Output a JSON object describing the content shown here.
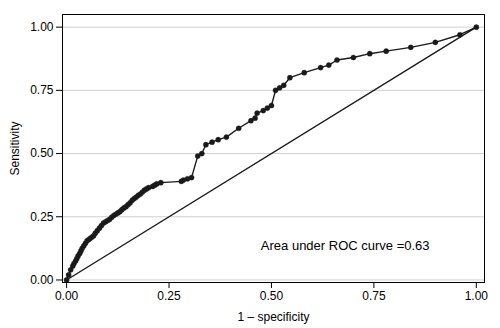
{
  "chart_data": {
    "type": "line",
    "xlabel": "1 – specificity",
    "ylabel": "Sensitivity",
    "annotation": "Area under ROC curve =0.63",
    "xlim": [
      -0.01,
      1.02
    ],
    "ylim": [
      -0.01,
      1.05
    ],
    "xticks": [
      {
        "value": 0.0,
        "label": "0.00"
      },
      {
        "value": 0.25,
        "label": "0.25"
      },
      {
        "value": 0.5,
        "label": "0.50"
      },
      {
        "value": 0.75,
        "label": "0.75"
      },
      {
        "value": 1.0,
        "label": "1.00"
      }
    ],
    "yticks": [
      {
        "value": 0.0,
        "label": "0.00"
      },
      {
        "value": 0.25,
        "label": "0.25"
      },
      {
        "value": 0.5,
        "label": "0.50"
      },
      {
        "value": 0.75,
        "label": "0.75"
      },
      {
        "value": 1.0,
        "label": "1.00"
      }
    ],
    "grid": "y",
    "series": [
      {
        "color": "#1a1a1a",
        "line_style": "solid",
        "x": [
          0,
          1
        ],
        "values": [
          0,
          1
        ]
      },
      {
        "color": "#1a1a1a",
        "line_style": "solid",
        "marker": "circle",
        "x": [
          0.0,
          0.005,
          0.01,
          0.015,
          0.018,
          0.022,
          0.025,
          0.028,
          0.032,
          0.035,
          0.038,
          0.042,
          0.046,
          0.05,
          0.054,
          0.058,
          0.062,
          0.066,
          0.07,
          0.075,
          0.08,
          0.085,
          0.09,
          0.095,
          0.1,
          0.105,
          0.11,
          0.115,
          0.12,
          0.125,
          0.13,
          0.135,
          0.14,
          0.145,
          0.15,
          0.155,
          0.16,
          0.165,
          0.17,
          0.175,
          0.18,
          0.185,
          0.19,
          0.195,
          0.2,
          0.21,
          0.215,
          0.22,
          0.23,
          0.28,
          0.285,
          0.295,
          0.305,
          0.32,
          0.33,
          0.34,
          0.355,
          0.37,
          0.39,
          0.42,
          0.45,
          0.46,
          0.465,
          0.48,
          0.49,
          0.5,
          0.51,
          0.52,
          0.53,
          0.545,
          0.58,
          0.62,
          0.64,
          0.66,
          0.7,
          0.74,
          0.78,
          0.84,
          0.9,
          0.96,
          1.0
        ],
        "values": [
          0.0,
          0.02,
          0.04,
          0.055,
          0.065,
          0.075,
          0.085,
          0.095,
          0.105,
          0.115,
          0.125,
          0.135,
          0.145,
          0.155,
          0.16,
          0.165,
          0.17,
          0.175,
          0.185,
          0.195,
          0.205,
          0.215,
          0.225,
          0.23,
          0.235,
          0.24,
          0.248,
          0.255,
          0.26,
          0.265,
          0.27,
          0.278,
          0.285,
          0.29,
          0.298,
          0.305,
          0.315,
          0.322,
          0.328,
          0.335,
          0.34,
          0.348,
          0.355,
          0.36,
          0.365,
          0.37,
          0.375,
          0.38,
          0.385,
          0.39,
          0.395,
          0.4,
          0.405,
          0.49,
          0.5,
          0.535,
          0.545,
          0.555,
          0.565,
          0.6,
          0.63,
          0.64,
          0.66,
          0.67,
          0.68,
          0.69,
          0.75,
          0.76,
          0.77,
          0.8,
          0.82,
          0.84,
          0.85,
          0.87,
          0.88,
          0.895,
          0.905,
          0.92,
          0.94,
          0.97,
          1.0
        ]
      }
    ]
  }
}
